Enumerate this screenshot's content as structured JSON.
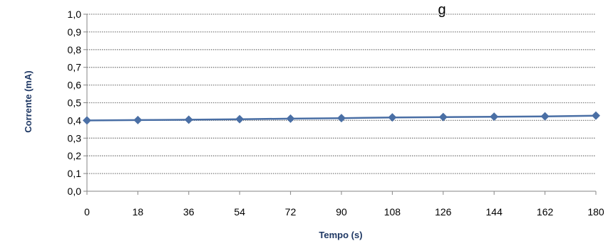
{
  "chart_data": {
    "type": "line",
    "title": "g",
    "xlabel": "Tempo (s)",
    "ylabel": "Corrente (mA)",
    "x": [
      0,
      18,
      36,
      54,
      72,
      90,
      108,
      126,
      144,
      162,
      180
    ],
    "x_tick_labels": [
      "0",
      "18",
      "36",
      "54",
      "72",
      "90",
      "108",
      "126",
      "144",
      "162",
      "180"
    ],
    "y_tick_labels": [
      "0,0",
      "0,1",
      "0,2",
      "0,3",
      "0,4",
      "0,5",
      "0,6",
      "0,7",
      "0,8",
      "0,9",
      "1,0"
    ],
    "xlim": [
      0,
      180
    ],
    "ylim": [
      0,
      1.0
    ],
    "grid": "horizontal dotted",
    "marker": "diamond",
    "series": [
      {
        "values": [
          0.4,
          0.402,
          0.404,
          0.407,
          0.41,
          0.413,
          0.417,
          0.419,
          0.421,
          0.423,
          0.427
        ]
      }
    ],
    "colors": {
      "series": "#4a6fa5",
      "axis_title": "#1f3864",
      "grid": "#7f7f7f",
      "axis": "#868686"
    }
  }
}
